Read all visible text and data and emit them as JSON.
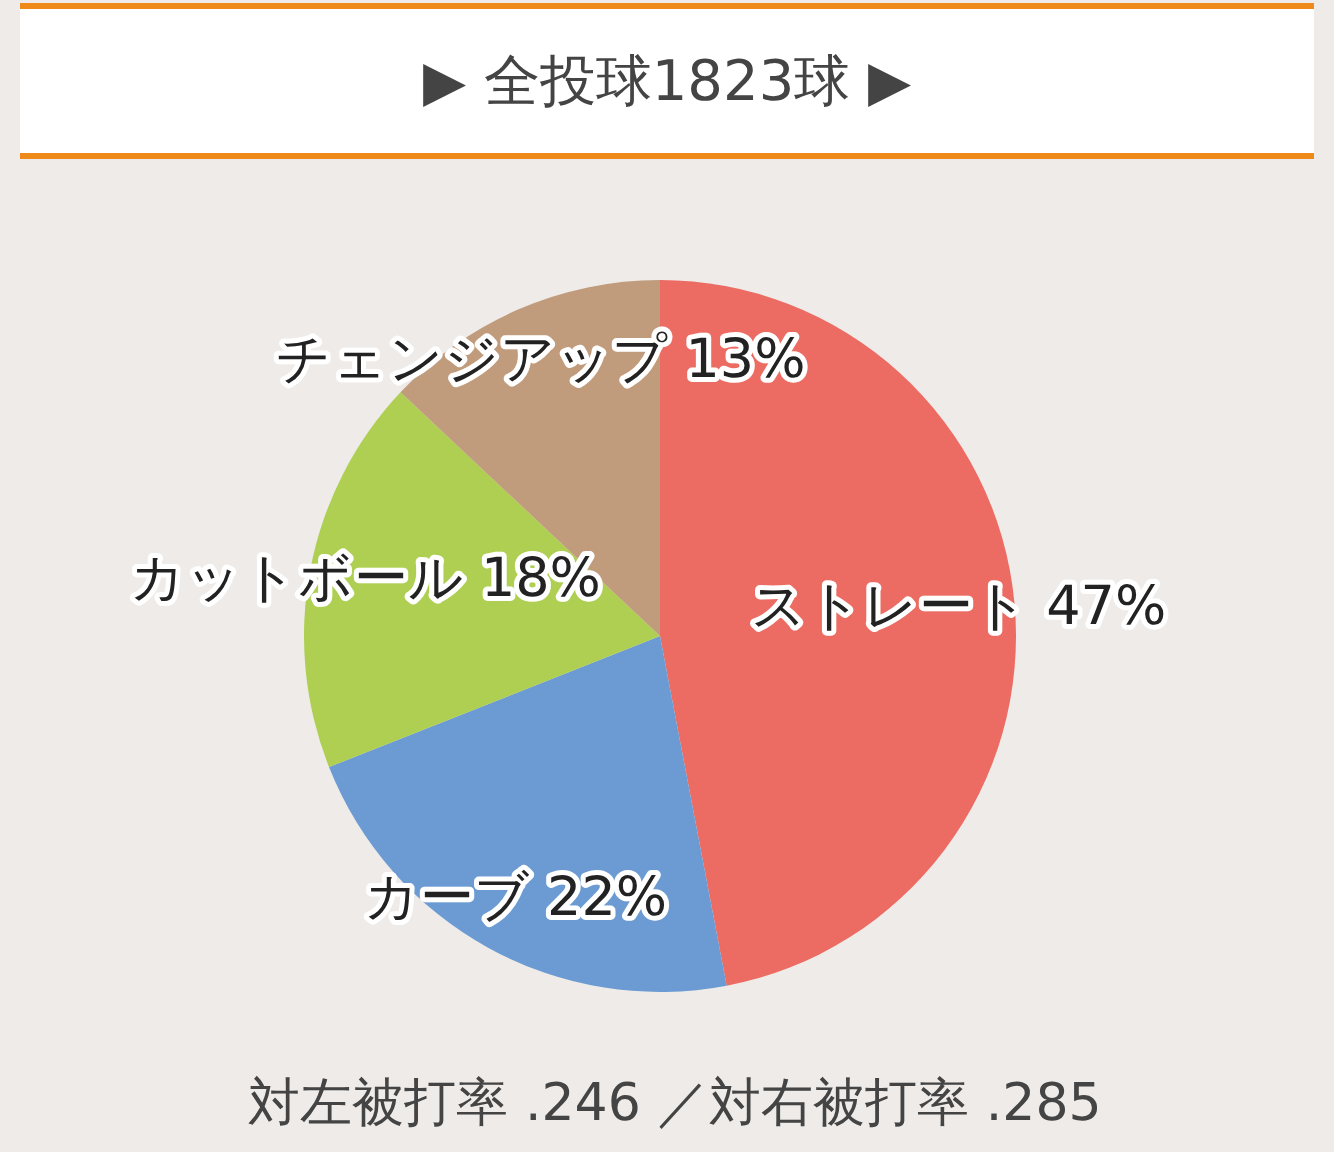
{
  "chart_data": {
    "type": "pie",
    "title": "▶ 全投球1823球 ▶",
    "categories": [
      "ストレート",
      "カーブ",
      "カットボール",
      "チェンジアップ"
    ],
    "values": [
      47,
      22,
      18,
      13
    ],
    "value_labels": [
      "47%",
      "22%",
      "18%",
      "13%"
    ],
    "colors": [
      "#ec6b63",
      "#6b9bd2",
      "#aecf52",
      "#c09b7c"
    ],
    "annotations": [
      "対左被打率 .246 ／対右被打率 .285"
    ]
  }
}
